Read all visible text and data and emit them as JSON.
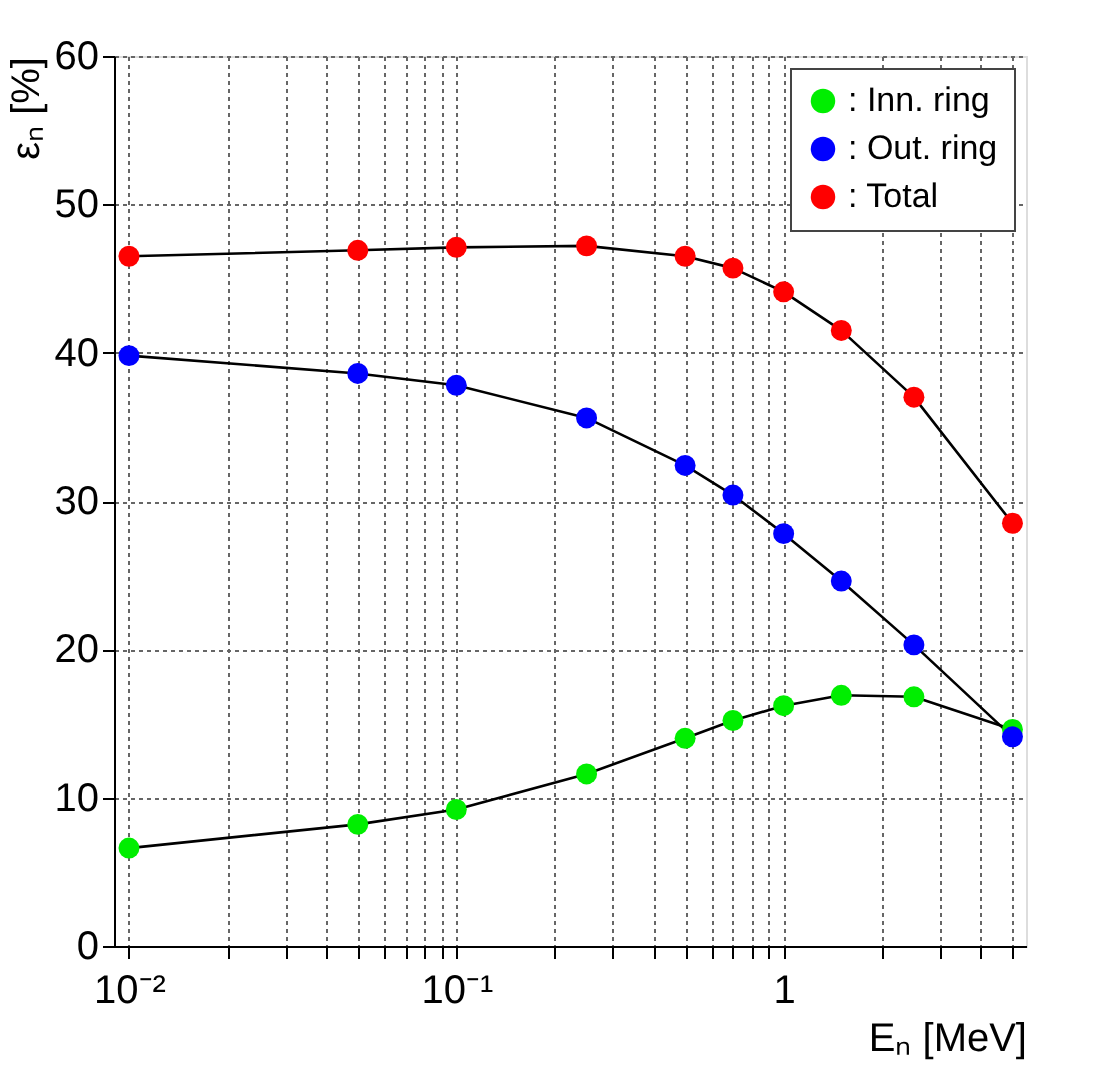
{
  "chart_data": {
    "type": "line",
    "xlabel": "Eₙ [MeV]",
    "ylabel": "εₙ [%]",
    "x": [
      0.01,
      0.05,
      0.1,
      0.25,
      0.5,
      0.7,
      1,
      1.5,
      2.5,
      5
    ],
    "series": [
      {
        "name": ": Inn. ring",
        "color": "#00ee00",
        "values": [
          6.6,
          8.2,
          9.2,
          11.6,
          14.0,
          15.2,
          16.2,
          16.9,
          16.8,
          14.6
        ]
      },
      {
        "name": ": Out. ring",
        "color": "#0000ff",
        "values": [
          39.8,
          38.6,
          37.8,
          35.6,
          32.4,
          30.4,
          27.8,
          24.6,
          20.3,
          14.1
        ]
      },
      {
        "name": ": Total",
        "color": "#ff0000",
        "values": [
          46.5,
          46.9,
          47.1,
          47.2,
          46.5,
          45.7,
          44.1,
          41.5,
          37.0,
          28.5
        ]
      }
    ],
    "log": "x",
    "xlim": [
      0.009,
      5.5
    ],
    "xticks": [
      {
        "value": 0.01,
        "label": "10⁻²"
      },
      {
        "value": 0.02,
        "label": null
      },
      {
        "value": 0.03,
        "label": null
      },
      {
        "value": 0.04,
        "label": null
      },
      {
        "value": 0.05,
        "label": null
      },
      {
        "value": 0.06,
        "label": null
      },
      {
        "value": 0.07,
        "label": null
      },
      {
        "value": 0.08,
        "label": null
      },
      {
        "value": 0.09,
        "label": null
      },
      {
        "value": 0.1,
        "label": "10⁻¹"
      },
      {
        "value": 0.2,
        "label": null
      },
      {
        "value": 0.3,
        "label": null
      },
      {
        "value": 0.4,
        "label": null
      },
      {
        "value": 0.5,
        "label": null
      },
      {
        "value": 0.6,
        "label": null
      },
      {
        "value": 0.7,
        "label": null
      },
      {
        "value": 0.8,
        "label": null
      },
      {
        "value": 0.9,
        "label": null
      },
      {
        "value": 1,
        "label": "1"
      },
      {
        "value": 2,
        "label": null
      },
      {
        "value": 3,
        "label": null
      },
      {
        "value": 4,
        "label": null
      },
      {
        "value": 5,
        "label": null
      }
    ],
    "ylim": [
      0,
      60
    ],
    "yticks": [
      0,
      10,
      20,
      30,
      40,
      50,
      60
    ],
    "grid": true,
    "legend": "top right",
    "marker": "circle",
    "line_style": "solid"
  }
}
